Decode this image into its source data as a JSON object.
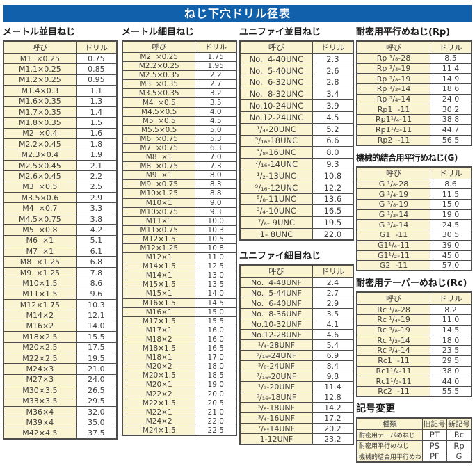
{
  "title": "ねじ下穴ドリル径表",
  "col_headers": {
    "name": "呼び",
    "drill": "ドリル"
  },
  "sections": {
    "metric_coarse": {
      "title": "メートル並目ねじ",
      "rows": [
        [
          "M1  ×0.25",
          "0.75"
        ],
        [
          "M1.1×0.25",
          "0.85"
        ],
        [
          "M1.2×0.25",
          "0.95"
        ],
        [
          "M1.4×0.3",
          "1.1"
        ],
        [
          "M1.6×0.35",
          "1.3"
        ],
        [
          "M1.7×0.35",
          "1.4"
        ],
        [
          "M1.8×0.35",
          "1.5"
        ],
        [
          "M2  ×0.4",
          "1.6"
        ],
        [
          "M2.2×0.45",
          "1.8"
        ],
        [
          "M2.3×0.4",
          "1.9"
        ],
        [
          "M2.5×0.45",
          "2.1"
        ],
        [
          "M2.6×0.45",
          "2.2"
        ],
        [
          "M3  ×0.5",
          "2.5"
        ],
        [
          "M3.5×0.6",
          "2.9"
        ],
        [
          "M4  ×0.7",
          "3.3"
        ],
        [
          "M4.5×0.75",
          "3.8"
        ],
        [
          "M5  ×0.8",
          "4.2"
        ],
        [
          "M6  ×1",
          "5.1"
        ],
        [
          "M7  ×1",
          "6.1"
        ],
        [
          "M8  ×1.25",
          "6.8"
        ],
        [
          "M9  ×1.25",
          "7.8"
        ],
        [
          "M10×1.5",
          "8.6"
        ],
        [
          "M11×1.5",
          "9.6"
        ],
        [
          "M12×1.75",
          "10.3"
        ],
        [
          "M14×2",
          "12.1"
        ],
        [
          "M16×2",
          "14.0"
        ],
        [
          "M18×2.5",
          "15.5"
        ],
        [
          "M20×2.5",
          "17.5"
        ],
        [
          "M22×2.5",
          "19.5"
        ],
        [
          "M24×3",
          "21.0"
        ],
        [
          "M27×3",
          "24.0"
        ],
        [
          "M30×3.5",
          "26.5"
        ],
        [
          "M33×3.5",
          "29.5"
        ],
        [
          "M36×4",
          "32.0"
        ],
        [
          "M39×4",
          "35.0"
        ],
        [
          "M42×4.5",
          "37.5"
        ]
      ]
    },
    "metric_fine": {
      "title": "メートル細目ねじ",
      "rows": [
        [
          "M2  ×0.25",
          "1.75"
        ],
        [
          "M2.2×0.25",
          "1.95"
        ],
        [
          "M2.5×0.35",
          "2.2"
        ],
        [
          "M3  ×0.35",
          "2.7"
        ],
        [
          "M3.5×0.35",
          "3.2"
        ],
        [
          "M4  ×0.5",
          "3.5"
        ],
        [
          "M4.5×0.5",
          "4.0"
        ],
        [
          "M5  ×0.5",
          "4.5"
        ],
        [
          "M5.5×0.5",
          "5.0"
        ],
        [
          "M6  ×0.75",
          "5.3"
        ],
        [
          "M7  ×0.75",
          "6.3"
        ],
        [
          "M8  ×1",
          "7.0"
        ],
        [
          "M8  ×0.75",
          "7.3"
        ],
        [
          "M9  ×1",
          "8.0"
        ],
        [
          "M9  ×0.75",
          "8.3"
        ],
        [
          "M10×1.25",
          "8.8"
        ],
        [
          "M10×1",
          "9.0"
        ],
        [
          "M10×0.75",
          "9.3"
        ],
        [
          "M11×1",
          "10.0"
        ],
        [
          "M11×0.75",
          "10.3"
        ],
        [
          "M12×1.5",
          "10.5"
        ],
        [
          "M12×1.25",
          "10.8"
        ],
        [
          "M12×1",
          "11.0"
        ],
        [
          "M14×1.5",
          "12.5"
        ],
        [
          "M14×1",
          "13.0"
        ],
        [
          "M15×1.5",
          "13.5"
        ],
        [
          "M15×1",
          "14.0"
        ],
        [
          "M16×1.5",
          "14.5"
        ],
        [
          "M16×1",
          "15.0"
        ],
        [
          "M17×1.5",
          "15.5"
        ],
        [
          "M17×1",
          "16.0"
        ],
        [
          "M18×2",
          "16.0"
        ],
        [
          "M18×1.5",
          "16.5"
        ],
        [
          "M18×1",
          "17.0"
        ],
        [
          "M20×2",
          "18.0"
        ],
        [
          "M20×1.5",
          "18.5"
        ],
        [
          "M20×1",
          "19.0"
        ],
        [
          "M22×2",
          "20.0"
        ],
        [
          "M22×1.5",
          "20.5"
        ],
        [
          "M22×1",
          "21.0"
        ],
        [
          "M24×2",
          "22.0"
        ],
        [
          "M24×1.5",
          "22.5"
        ]
      ]
    },
    "unified_coarse": {
      "title": "ユニファイ並目ねじ",
      "rows": [
        [
          "No.  4-40UNC",
          "2.3"
        ],
        [
          "No.  5-40UNC",
          "2.6"
        ],
        [
          "No.  6-32UNC",
          "2.8"
        ],
        [
          "No.  8-32UNC",
          "3.4"
        ],
        [
          "No.10-24UNC",
          "3.9"
        ],
        [
          "No.12-24UNC",
          "4.5"
        ],
        [
          "¹/₄-20UNC",
          "5.2"
        ],
        [
          "⁵/₁₆-18UNC",
          "6.6"
        ],
        [
          "³/₈-16UNC",
          "8.0"
        ],
        [
          "⁷/₁₆-14UNC",
          "9.3"
        ],
        [
          "¹/₂-13UNC",
          "10.8"
        ],
        [
          "⁹/₁₆-12UNC",
          "12.2"
        ],
        [
          "⁵/₈-11UNC",
          "13.6"
        ],
        [
          "³/₄-10UNC",
          "16.5"
        ],
        [
          "⁷/₈- 9UNC",
          "19.5"
        ],
        [
          "1- 8UNC",
          "22.0"
        ]
      ]
    },
    "unified_fine": {
      "title": "ユニファイ細目ねじ",
      "rows": [
        [
          "No.  4-48UNF",
          "2.4"
        ],
        [
          "No.  5-44UNF",
          "2.7"
        ],
        [
          "No.  6-40UNF",
          "2.9"
        ],
        [
          "No.  8-36UNF",
          "3.5"
        ],
        [
          "No.10-32UNF",
          "4.1"
        ],
        [
          "No.12-28UNF",
          "4.6"
        ],
        [
          "¹/₄-28UNF",
          "5.4"
        ],
        [
          "⁵/₁₆-24UNF",
          "6.9"
        ],
        [
          "³/₈-24UNF",
          "8.4"
        ],
        [
          "⁷/₁₆-20UNF",
          "9.8"
        ],
        [
          "¹/₂-20UNF",
          "11.4"
        ],
        [
          "⁹/₁₆-18UNF",
          "12.8"
        ],
        [
          "⁵/₈-18UNF",
          "14.2"
        ],
        [
          "³/₄-16UNF",
          "17.2"
        ],
        [
          "⁷/₈-14UNF",
          "20.2"
        ],
        [
          "1-12UNF",
          "23.2"
        ]
      ]
    },
    "rp": {
      "title": "耐密用平行めねじ(Rp)",
      "rows": [
        [
          "Rp ¹/₈-28",
          "8.5"
        ],
        [
          "Rp ¹/₄-19",
          "11.4"
        ],
        [
          "Rp ³/₈-19",
          "14.9"
        ],
        [
          "Rp ¹/₂-14",
          "18.6"
        ],
        [
          "Rp ³/₄-14",
          "24.0"
        ],
        [
          "Rp1  -11",
          "30.2"
        ],
        [
          "Rp1¹/₄-11",
          "38.8"
        ],
        [
          "Rp1¹/₂-11",
          "44.7"
        ],
        [
          "Rp2  -11",
          "56.5"
        ]
      ]
    },
    "g": {
      "title": "機械的結合用平行めねじ(G)",
      "rows": [
        [
          "G ¹/₈-28",
          "8.6"
        ],
        [
          "G ¹/₄-19",
          "11.5"
        ],
        [
          "G ³/₈-19",
          "15.0"
        ],
        [
          "G ¹/₂-14",
          "19.0"
        ],
        [
          "G ³/₄-14",
          "24.5"
        ],
        [
          "G1  -11",
          "30.5"
        ],
        [
          "G1¹/₄-11",
          "39.0"
        ],
        [
          "G1¹/₂-11",
          "45.0"
        ],
        [
          "G2  -11",
          "57.0"
        ]
      ]
    },
    "rc": {
      "title": "耐密用テーパーめねじ(Rc)",
      "rows": [
        [
          "Rc ¹/₈-28",
          "8.2"
        ],
        [
          "Rc ¹/₄-19",
          "11.0"
        ],
        [
          "Rc ³/₈-19",
          "14.5"
        ],
        [
          "Rc ¹/₂-14",
          "18.0"
        ],
        [
          "Rc ³/₄-14",
          "23.5"
        ],
        [
          "Rc1  -11",
          "29.5"
        ],
        [
          "Rc1¹/₄-11",
          "38.0"
        ],
        [
          "Rc1¹/₂-11",
          "44.0"
        ],
        [
          "Rc2  -11",
          "55.5"
        ]
      ]
    },
    "symbol_change": {
      "title": "記号変更",
      "headers": [
        "種類",
        "旧記号",
        "新記号"
      ],
      "rows": [
        [
          "耐密用テーパめねじ",
          "PT",
          "Rc"
        ],
        [
          "耐密用平行めねじ",
          "PS",
          "Rp"
        ],
        [
          "機械的結合用平行めねじ",
          "PF",
          "G"
        ]
      ]
    }
  },
  "colors": {
    "title_bar_bg": "#1160ab",
    "title_bar_text": "#ffffff",
    "cell_cream": "#fbf4d3",
    "cell_white": "#ffffff",
    "border": "#4d4d4d",
    "text": "#3c3c3c"
  }
}
